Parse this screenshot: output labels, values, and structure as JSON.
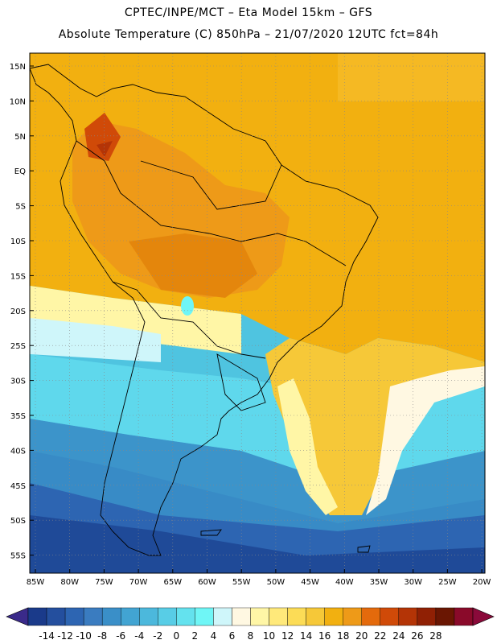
{
  "header": {
    "line1": "CPTEC/INPE/MCT –  Eta Model 15km – GFS",
    "line2": "Absolute Temperature (C) 850hPa – 21/07/2020 12UTC fct=84h"
  },
  "map": {
    "lat_labels": [
      "15N",
      "10N",
      "5N",
      "EQ",
      "5S",
      "10S",
      "15S",
      "20S",
      "25S",
      "30S",
      "35S",
      "40S",
      "45S",
      "50S",
      "55S"
    ],
    "lon_labels": [
      "85W",
      "80W",
      "75W",
      "70W",
      "65W",
      "60W",
      "55W",
      "50W",
      "45W",
      "40W",
      "35W",
      "30W",
      "25W",
      "20W"
    ],
    "field": "Absolute Temperature (C) 850hPa"
  },
  "colorbar": {
    "ticks": [
      "-14",
      "-12",
      "-10",
      "-8",
      "-6",
      "-4",
      "-2",
      "0",
      "2",
      "4",
      "6",
      "8",
      "10",
      "12",
      "14",
      "16",
      "18",
      "20",
      "22",
      "24",
      "26",
      "28"
    ],
    "colors": [
      "#1a3a8a",
      "#244f9e",
      "#2d65b2",
      "#3a7cc0",
      "#3a8fc8",
      "#42a4d2",
      "#4cb8dc",
      "#58cde6",
      "#64e2ee",
      "#6ff6f6",
      "#cff6fa",
      "#fff8e2",
      "#fff6a6",
      "#ffe97a",
      "#fcdc56",
      "#f6c838",
      "#f2b010",
      "#ee9a18",
      "#e46a0c",
      "#d04a08",
      "#b43406",
      "#902004",
      "#6a1602",
      "#8a0a2a"
    ],
    "under_color": "#3a2a8a",
    "over_color": "#8a0a3a"
  }
}
